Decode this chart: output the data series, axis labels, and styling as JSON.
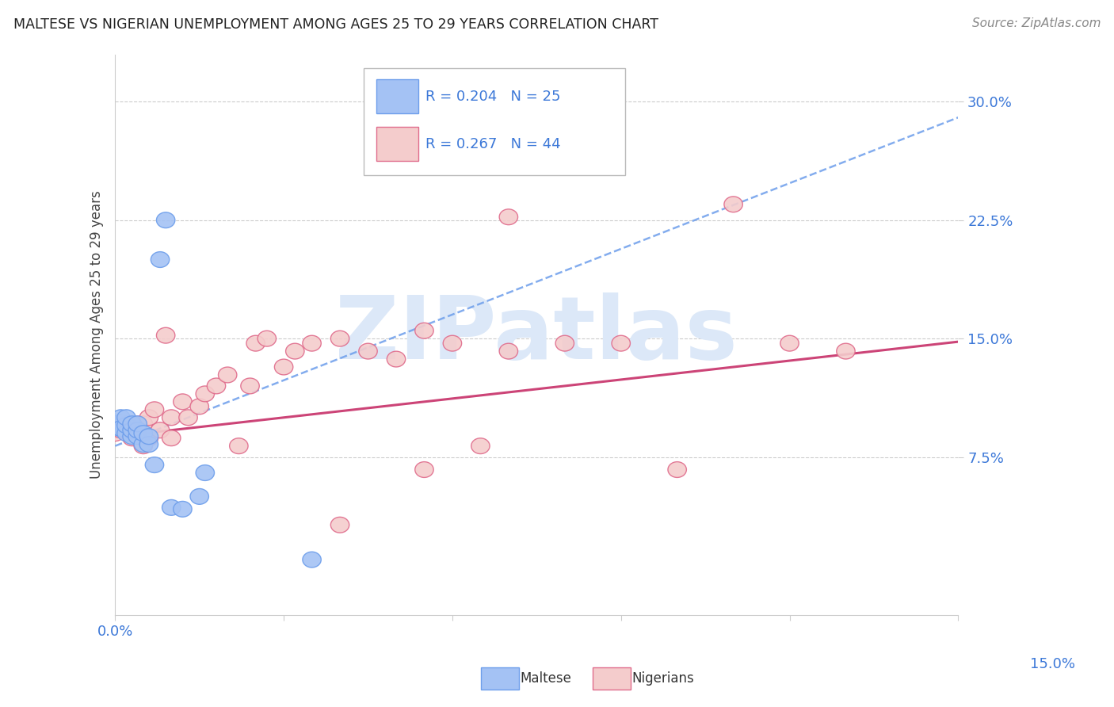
{
  "title": "MALTESE VS NIGERIAN UNEMPLOYMENT AMONG AGES 25 TO 29 YEARS CORRELATION CHART",
  "source": "Source: ZipAtlas.com",
  "ylabel": "Unemployment Among Ages 25 to 29 years",
  "xlim": [
    0.0,
    0.15
  ],
  "ylim": [
    -0.025,
    0.33
  ],
  "ytick_right_vals": [
    0.075,
    0.15,
    0.225,
    0.3
  ],
  "ytick_right_labels": [
    "7.5%",
    "15.0%",
    "22.5%",
    "30.0%"
  ],
  "blue_fc": "#a4c2f4",
  "blue_ec": "#6d9eeb",
  "pink_fc": "#f4cccc",
  "pink_ec": "#e06c8c",
  "blue_line_color": "#6d9eeb",
  "pink_line_color": "#cc4477",
  "title_color": "#222222",
  "axis_label_color": "#3c78d8",
  "legend_R_color": "#3c78d8",
  "background_color": "#ffffff",
  "grid_color": "#cccccc",
  "watermark_color": "#dce8f8",
  "maltese_x": [
    0.001,
    0.001,
    0.001,
    0.001,
    0.002,
    0.002,
    0.002,
    0.003,
    0.003,
    0.003,
    0.004,
    0.004,
    0.004,
    0.005,
    0.005,
    0.006,
    0.006,
    0.007,
    0.008,
    0.009,
    0.01,
    0.012,
    0.015,
    0.016,
    0.035
  ],
  "maltese_y": [
    0.093,
    0.097,
    0.1,
    0.093,
    0.09,
    0.095,
    0.1,
    0.088,
    0.092,
    0.096,
    0.088,
    0.092,
    0.096,
    0.083,
    0.09,
    0.083,
    0.088,
    0.07,
    0.2,
    0.225,
    0.043,
    0.042,
    0.05,
    0.065,
    0.01
  ],
  "nigerian_x": [
    0.0,
    0.001,
    0.002,
    0.003,
    0.003,
    0.004,
    0.005,
    0.005,
    0.006,
    0.006,
    0.007,
    0.008,
    0.009,
    0.01,
    0.01,
    0.012,
    0.013,
    0.015,
    0.016,
    0.018,
    0.02,
    0.022,
    0.024,
    0.025,
    0.027,
    0.03,
    0.032,
    0.035,
    0.04,
    0.045,
    0.05,
    0.055,
    0.06,
    0.065,
    0.07,
    0.08,
    0.09,
    0.1,
    0.11,
    0.12,
    0.13,
    0.07,
    0.04,
    0.055
  ],
  "nigerian_y": [
    0.09,
    0.092,
    0.096,
    0.087,
    0.093,
    0.096,
    0.082,
    0.096,
    0.087,
    0.1,
    0.105,
    0.092,
    0.152,
    0.087,
    0.1,
    0.11,
    0.1,
    0.107,
    0.115,
    0.12,
    0.127,
    0.082,
    0.12,
    0.147,
    0.15,
    0.132,
    0.142,
    0.147,
    0.15,
    0.142,
    0.137,
    0.155,
    0.147,
    0.082,
    0.142,
    0.147,
    0.147,
    0.067,
    0.235,
    0.147,
    0.142,
    0.227,
    0.032,
    0.067
  ],
  "R_maltese": 0.204,
  "N_maltese": 25,
  "R_nigerian": 0.267,
  "N_nigerian": 44,
  "blue_trend_x": [
    0.0,
    0.15
  ],
  "blue_trend_y": [
    0.082,
    0.29
  ],
  "pink_trend_x": [
    0.0,
    0.15
  ],
  "pink_trend_y": [
    0.088,
    0.148
  ]
}
